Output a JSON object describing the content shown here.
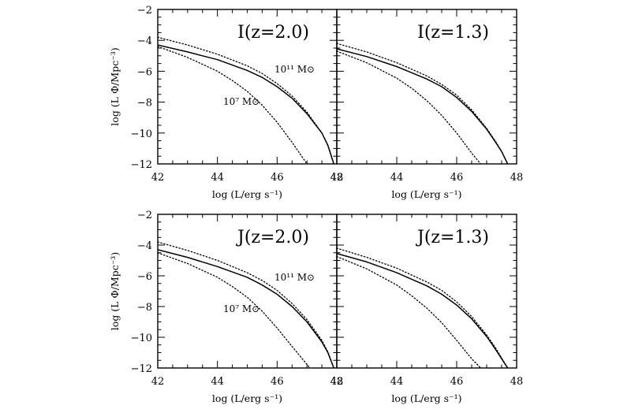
{
  "chart_data": [
    {
      "type": "line",
      "title": "I(z=2.0)",
      "xlabel": "log (L/erg s⁻¹)",
      "ylabel": "log (L Φ/Mpc⁻³)",
      "xlim": [
        42,
        48
      ],
      "ylim": [
        -12,
        -2
      ],
      "xticks": [
        "42",
        "44",
        "46",
        "48"
      ],
      "yticks": [
        "−2",
        "−4",
        "−6",
        "−8",
        "−10",
        "−12"
      ],
      "annotations": [
        "10¹¹ M⊙",
        "10⁷ M⊙"
      ],
      "series": [
        {
          "style": "solid",
          "x": [
            42,
            43,
            44,
            45,
            45.5,
            46,
            46.5,
            47,
            47.5,
            47.7,
            47.9
          ],
          "y": [
            -4.3,
            -4.75,
            -5.25,
            -5.95,
            -6.4,
            -7.0,
            -7.75,
            -8.75,
            -10.0,
            -10.8,
            -12.0
          ]
        },
        {
          "style": "dotted",
          "x": [
            42,
            43,
            44,
            45,
            45.5,
            46,
            46.5,
            47,
            47.5,
            47.7,
            47.9
          ],
          "y": [
            -3.8,
            -4.3,
            -4.9,
            -5.65,
            -6.15,
            -6.8,
            -7.6,
            -8.65,
            -10.0,
            -10.8,
            -12.0
          ]
        },
        {
          "style": "dotted",
          "x": [
            42,
            43,
            44,
            44.5,
            45,
            45.5,
            46,
            46.5,
            47
          ],
          "y": [
            -4.4,
            -5.1,
            -6.0,
            -6.6,
            -7.3,
            -8.2,
            -9.3,
            -10.6,
            -12.0
          ]
        }
      ]
    },
    {
      "type": "line",
      "title": "I(z=1.3)",
      "xlabel": "log (L/erg s⁻¹)",
      "ylabel": "",
      "xlim": [
        42,
        48
      ],
      "ylim": [
        -12,
        -2
      ],
      "xticks": [
        "42",
        "44",
        "46",
        "48"
      ],
      "yticks": [],
      "annotations": [],
      "series": [
        {
          "style": "solid",
          "x": [
            42,
            43,
            44,
            45,
            45.5,
            46,
            46.5,
            47,
            47.3,
            47.5,
            47.7
          ],
          "y": [
            -4.55,
            -5.05,
            -5.7,
            -6.5,
            -7.0,
            -7.7,
            -8.6,
            -9.75,
            -10.6,
            -11.2,
            -12.0
          ]
        },
        {
          "style": "dotted",
          "x": [
            42,
            43,
            44,
            45,
            45.5,
            46,
            46.5,
            47,
            47.3,
            47.5,
            47.7
          ],
          "y": [
            -4.2,
            -4.75,
            -5.45,
            -6.3,
            -6.85,
            -7.55,
            -8.5,
            -9.7,
            -10.55,
            -11.2,
            -12.0
          ]
        },
        {
          "style": "dotted",
          "x": [
            42,
            43,
            44,
            44.5,
            45,
            45.5,
            46,
            46.5,
            46.8
          ],
          "y": [
            -4.7,
            -5.45,
            -6.45,
            -7.1,
            -7.9,
            -8.85,
            -10.0,
            -11.3,
            -12.0
          ]
        }
      ]
    },
    {
      "type": "line",
      "title": "J(z=2.0)",
      "xlabel": "log (L/erg s⁻¹)",
      "ylabel": "log (L Φ/Mpc⁻³)",
      "xlim": [
        42,
        48
      ],
      "ylim": [
        -12,
        -2
      ],
      "xticks": [
        "42",
        "44",
        "46",
        "48"
      ],
      "yticks": [
        "−2",
        "−4",
        "−6",
        "−8",
        "−10",
        "−12"
      ],
      "annotations": [
        "10¹¹ M⊙",
        "10⁷ M⊙"
      ],
      "series": [
        {
          "style": "solid",
          "x": [
            42,
            43,
            44,
            45,
            45.5,
            46,
            46.5,
            47,
            47.5,
            47.7,
            47.9
          ],
          "y": [
            -4.3,
            -4.8,
            -5.4,
            -6.1,
            -6.6,
            -7.2,
            -8.0,
            -9.0,
            -10.3,
            -11.0,
            -12.0
          ]
        },
        {
          "style": "dotted",
          "x": [
            42,
            43,
            44,
            45,
            45.5,
            46,
            46.5,
            47,
            47.5,
            47.7,
            47.9
          ],
          "y": [
            -3.8,
            -4.35,
            -5.0,
            -5.8,
            -6.3,
            -6.95,
            -7.8,
            -8.85,
            -10.2,
            -10.95,
            -12.0
          ]
        },
        {
          "style": "dotted",
          "x": [
            42,
            43,
            44,
            44.5,
            45,
            45.5,
            46,
            46.5,
            47.1
          ],
          "y": [
            -4.5,
            -5.2,
            -6.1,
            -6.7,
            -7.4,
            -8.3,
            -9.4,
            -10.6,
            -12.0
          ]
        }
      ]
    },
    {
      "type": "line",
      "title": "J(z=1.3)",
      "xlabel": "log (L/erg s⁻¹)",
      "ylabel": "",
      "xlim": [
        42,
        48
      ],
      "ylim": [
        -12,
        -2
      ],
      "xticks": [
        "42",
        "44",
        "46",
        "48"
      ],
      "yticks": [],
      "annotations": [],
      "series": [
        {
          "style": "solid",
          "x": [
            42,
            43,
            44,
            45,
            45.5,
            46,
            46.5,
            47,
            47.3,
            47.5,
            47.7
          ],
          "y": [
            -4.55,
            -5.1,
            -5.8,
            -6.65,
            -7.2,
            -7.9,
            -8.8,
            -9.95,
            -10.8,
            -11.4,
            -12.0
          ]
        },
        {
          "style": "dotted",
          "x": [
            42,
            43,
            44,
            45,
            45.5,
            46,
            46.5,
            47,
            47.3,
            47.5,
            47.7
          ],
          "y": [
            -4.2,
            -4.8,
            -5.5,
            -6.4,
            -6.95,
            -7.7,
            -8.65,
            -9.85,
            -10.7,
            -11.35,
            -12.0
          ]
        },
        {
          "style": "dotted",
          "x": [
            42,
            43,
            44,
            44.5,
            45,
            45.5,
            46,
            46.5,
            46.8
          ],
          "y": [
            -4.75,
            -5.55,
            -6.6,
            -7.3,
            -8.1,
            -9.05,
            -10.2,
            -11.4,
            -12.0
          ]
        }
      ]
    }
  ]
}
